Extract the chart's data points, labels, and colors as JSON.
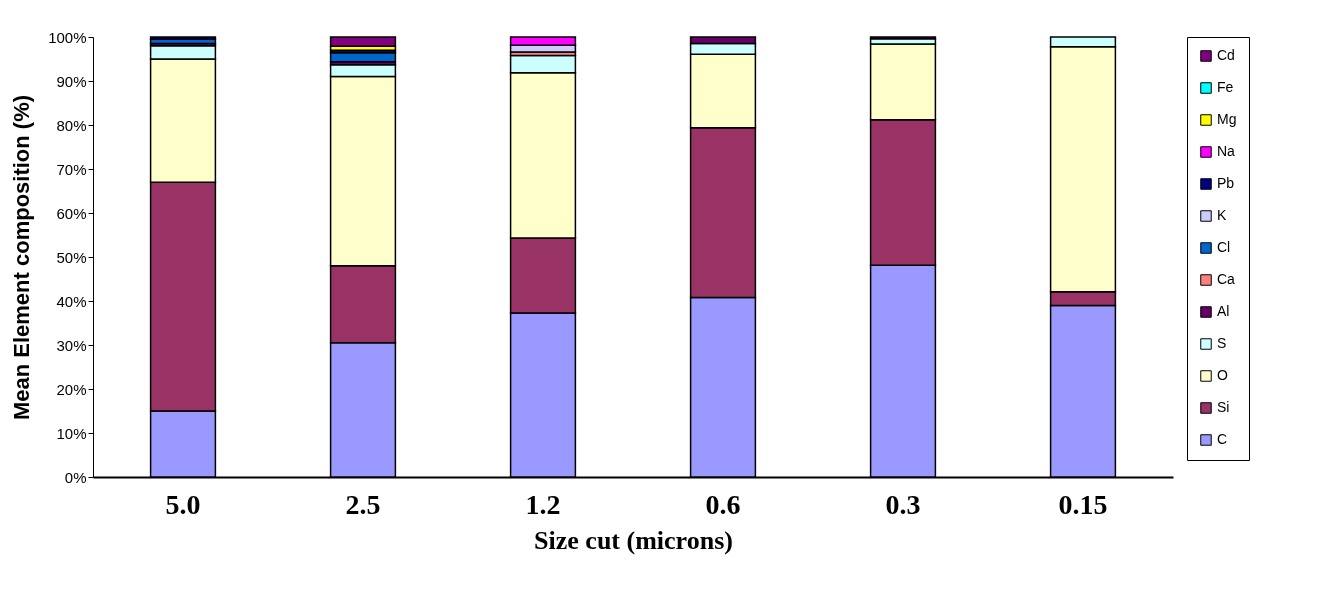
{
  "chart_data": {
    "type": "bar",
    "stacked": true,
    "xlabel": "Size cut (microns)",
    "ylabel": "Mean Element composition (%)",
    "categories": [
      "5.0",
      "2.5",
      "1.2",
      "0.6",
      "0.3",
      "0.15"
    ],
    "ylim": [
      0,
      100
    ],
    "yticks": [
      {
        "value": 0,
        "label": "0%"
      },
      {
        "value": 10,
        "label": "10%"
      },
      {
        "value": 20,
        "label": "20%"
      },
      {
        "value": 30,
        "label": "30%"
      },
      {
        "value": 40,
        "label": "40%"
      },
      {
        "value": 50,
        "label": "50%"
      },
      {
        "value": 60,
        "label": "60%"
      },
      {
        "value": 70,
        "label": "70%"
      },
      {
        "value": 80,
        "label": "80%"
      },
      {
        "value": 90,
        "label": "90%"
      },
      {
        "value": 100,
        "label": "100%"
      }
    ],
    "grid": false,
    "legend": "right",
    "series": [
      {
        "name": "C",
        "color": "#9999ff",
        "values": [
          15,
          30.5,
          37.3,
          40.8,
          48.1,
          39
        ]
      },
      {
        "name": "Si",
        "color": "#993366",
        "values": [
          52,
          17.5,
          17,
          38.6,
          33.1,
          3.1
        ]
      },
      {
        "name": "O",
        "color": "#ffffcc",
        "values": [
          28,
          43,
          37.6,
          16.7,
          17.2,
          55.7
        ]
      },
      {
        "name": "S",
        "color": "#ccffff",
        "values": [
          3,
          2.7,
          3.9,
          2.4,
          1.2,
          2.2
        ]
      },
      {
        "name": "Al",
        "color": "#660066",
        "values": [
          0.5,
          0.7,
          null,
          1.5,
          0.4,
          null
        ]
      },
      {
        "name": "Ca",
        "color": "#ff8080",
        "values": [
          null,
          null,
          0.8,
          null,
          null,
          null
        ]
      },
      {
        "name": "Cl",
        "color": "#0066cc",
        "values": [
          1,
          2,
          null,
          null,
          null,
          null
        ]
      },
      {
        "name": "K",
        "color": "#ccccff",
        "values": [
          null,
          null,
          1.5,
          null,
          null,
          null
        ]
      },
      {
        "name": "Pb",
        "color": "#000080",
        "values": [
          0.5,
          0.6,
          null,
          null,
          null,
          null
        ]
      },
      {
        "name": "Na",
        "color": "#ff00ff",
        "values": [
          null,
          null,
          1.9,
          null,
          null,
          null
        ]
      },
      {
        "name": "Mg",
        "color": "#ffff00",
        "values": [
          null,
          0.9,
          null,
          null,
          null,
          null
        ]
      },
      {
        "name": "Fe",
        "color": "#00ffff",
        "values": [
          null,
          null,
          null,
          null,
          null,
          null
        ]
      },
      {
        "name": "Cd",
        "color": "#800080",
        "values": [
          null,
          2.1,
          null,
          null,
          null,
          null
        ]
      }
    ]
  }
}
